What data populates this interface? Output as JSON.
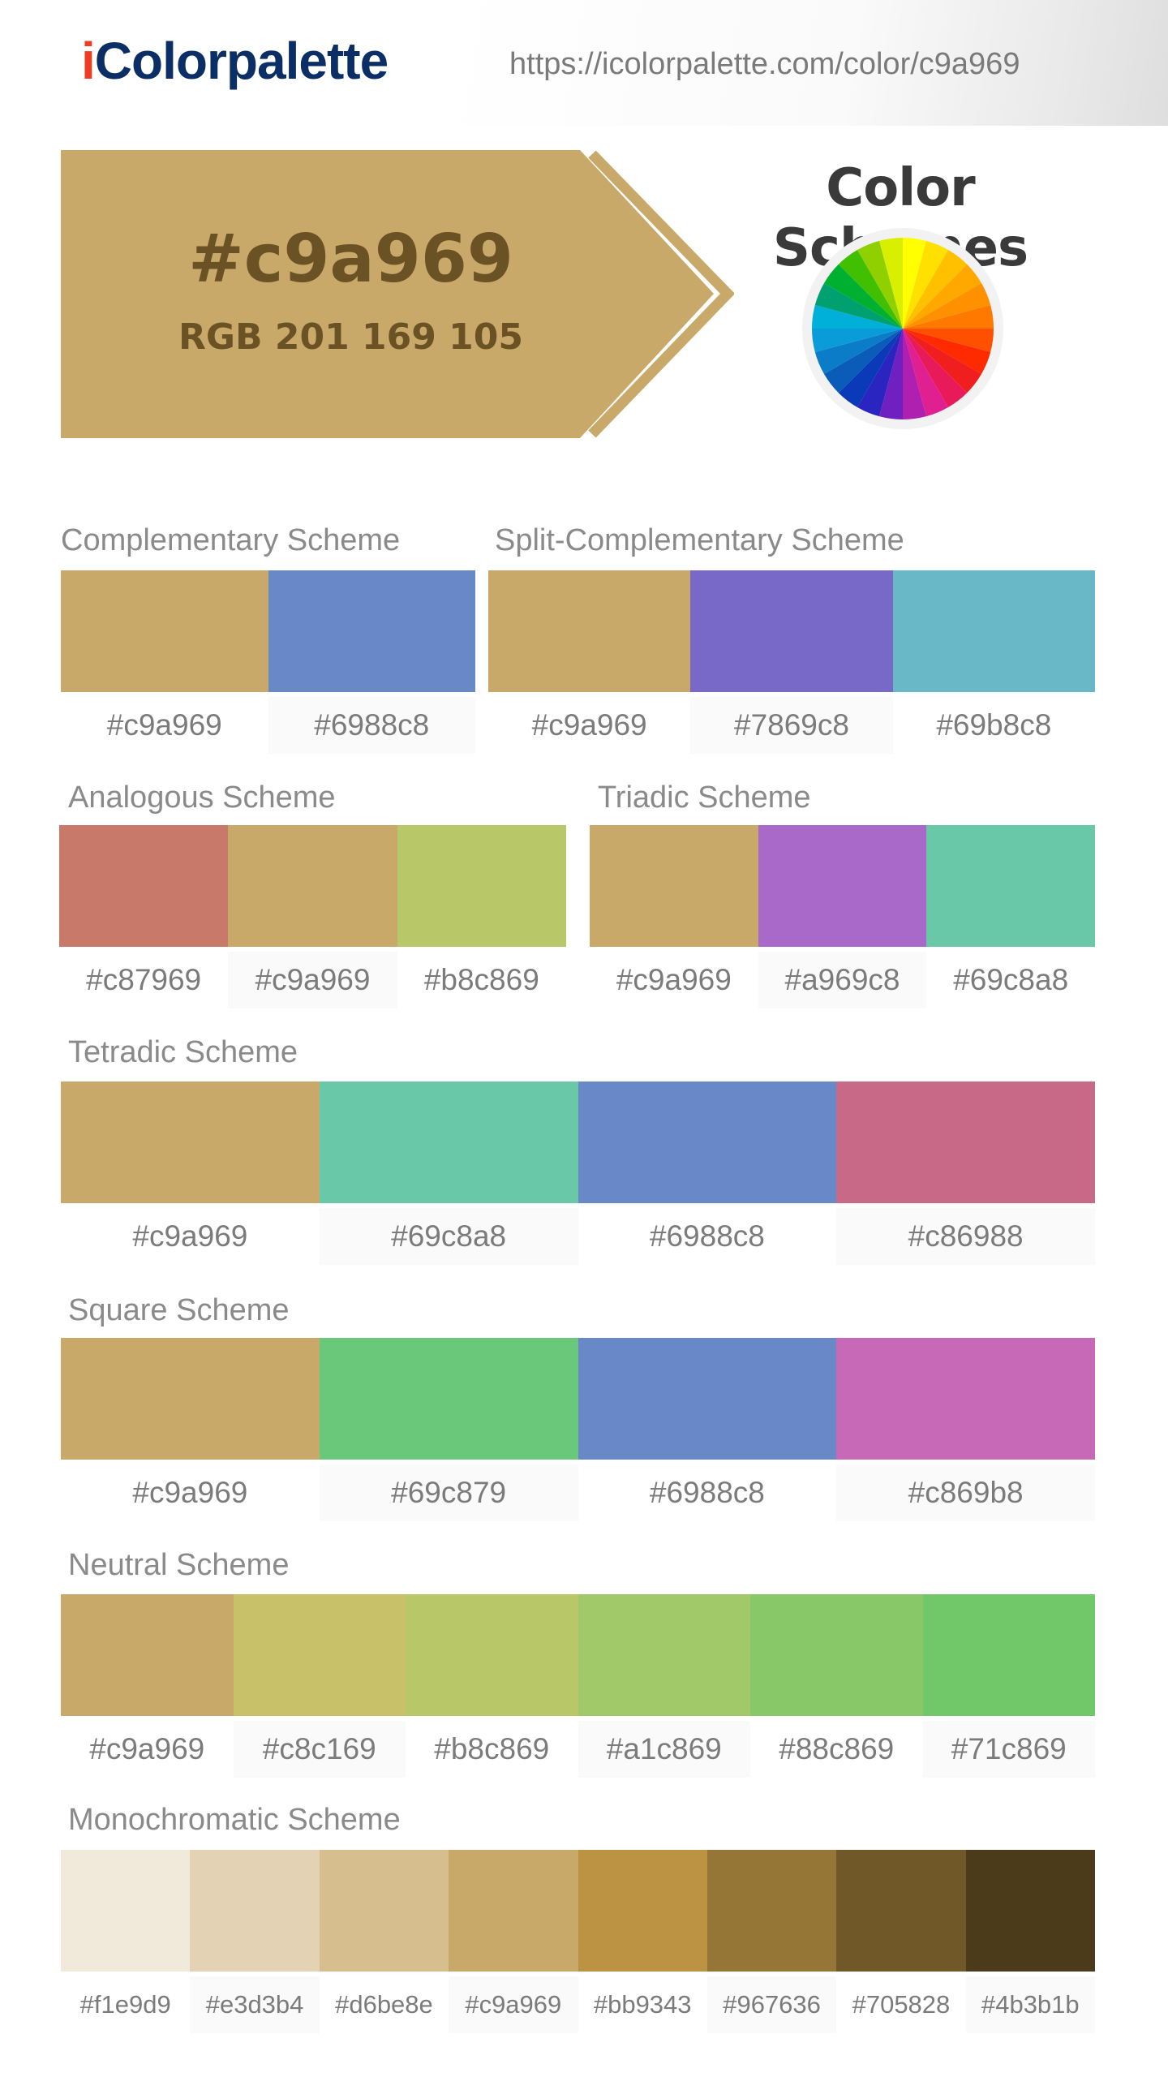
{
  "header": {
    "logo_i": "i",
    "logo_rest": "Colorpalette",
    "url": "https://icolorpalette.com/color/c9a969"
  },
  "hero": {
    "hex": "#c9a969",
    "rgb": "RGB 201 169 105",
    "color": "#c9a969",
    "text_color": "#6b5225"
  },
  "page_title": "Color Schemes",
  "wheel_colors": [
    "#ffff00",
    "#ffe000",
    "#ffc000",
    "#ffa800",
    "#ff9000",
    "#ff7800",
    "#ff5000",
    "#ff2a00",
    "#f01e1e",
    "#e81a5a",
    "#e02090",
    "#b020b0",
    "#7020c0",
    "#2a24c0",
    "#0a3ab8",
    "#0a5cb8",
    "#0a7cc8",
    "#0a9cd8",
    "#00b0d8",
    "#00a070",
    "#00b030",
    "#40c000",
    "#90d000",
    "#d8f000"
  ],
  "schemes": [
    {
      "title": "Complementary Scheme",
      "colors": [
        "#c9a969",
        "#6988c8"
      ]
    },
    {
      "title": "Split-Complementary Scheme",
      "colors": [
        "#c9a969",
        "#7869c8",
        "#69b8c8"
      ]
    },
    {
      "title": "Analogous Scheme",
      "colors": [
        "#c87969",
        "#c9a969",
        "#b8c869"
      ]
    },
    {
      "title": "Triadic Scheme",
      "colors": [
        "#c9a969",
        "#a969c8",
        "#69c8a8"
      ]
    },
    {
      "title": "Tetradic Scheme",
      "colors": [
        "#c9a969",
        "#69c8a8",
        "#6988c8",
        "#c86988"
      ]
    },
    {
      "title": "Square Scheme",
      "colors": [
        "#c9a969",
        "#69c879",
        "#6988c8",
        "#c869b8"
      ]
    },
    {
      "title": "Neutral Scheme",
      "colors": [
        "#c9a969",
        "#c8c169",
        "#b8c869",
        "#a1c869",
        "#88c869",
        "#71c869"
      ]
    },
    {
      "title": "Monochromatic Scheme",
      "colors": [
        "#f1e9d9",
        "#e3d3b4",
        "#d6be8e",
        "#c9a969",
        "#bb9343",
        "#967636",
        "#705828",
        "#4b3b1b"
      ]
    }
  ]
}
